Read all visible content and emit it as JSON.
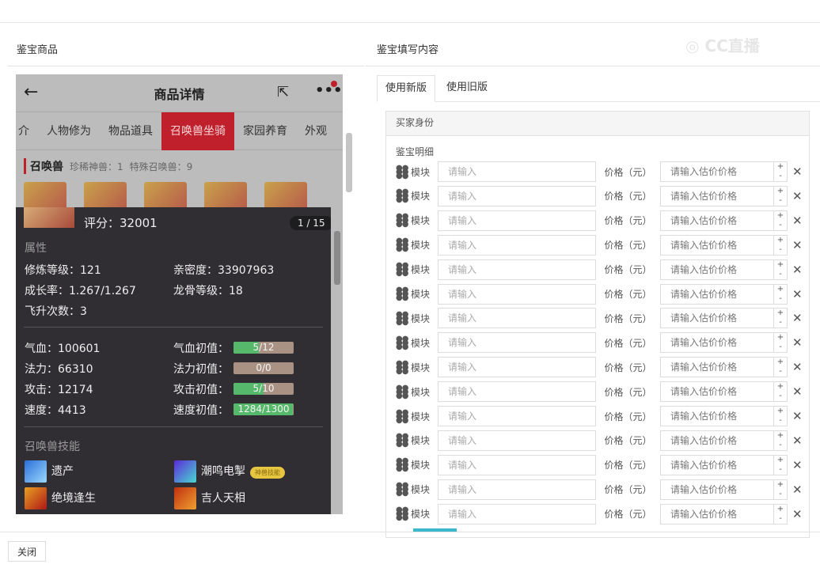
{
  "left": {
    "title": "鉴宝商品"
  },
  "right": {
    "title": "鉴宝填写内容",
    "tabs": [
      "使用新版",
      "使用旧版"
    ],
    "buyer": "买家身份",
    "detail": "鉴宝明细",
    "module_label": "模块",
    "module_placeholder": "请输入",
    "price_label": "价格（元）",
    "price_placeholder": "请输入估价价格",
    "row_count": 15
  },
  "phone": {
    "title": "商品详情",
    "tabs": [
      "介",
      "人物修为",
      "物品道具",
      "召唤兽坐骑",
      "家园养育",
      "外观"
    ],
    "active_tab": "召唤兽坐骑",
    "section": "召唤兽",
    "rare": "珍稀神兽：1",
    "special": "特殊召唤兽：9"
  },
  "pet": {
    "score": "评分：32001",
    "pager": "1 / 15",
    "attr_title": "属性",
    "attrs": [
      "修炼等级：121",
      "亲密度：33907963",
      "成长率：1.267/1.267",
      "龙骨等级：18",
      "飞升次数：3"
    ],
    "stats": [
      {
        "label": "气血：100601",
        "init_label": "气血初值：",
        "init": "5/12",
        "fill": 0.4167
      },
      {
        "label": "法力：66310",
        "init_label": "法力初值：",
        "init": "0/0",
        "fill": 0
      },
      {
        "label": "攻击：12174",
        "init_label": "攻击初值：",
        "init": "5/10",
        "fill": 0.5
      },
      {
        "label": "速度：4413",
        "init_label": "速度初值：",
        "init": "1284/1300",
        "fill": 0.9877
      }
    ],
    "skill_title": "召唤兽技能",
    "skills": [
      "遗产",
      "潮鸣电掣",
      "绝境逢生",
      "吉人天相"
    ],
    "skill_badge": "神兽技能"
  },
  "footer": {
    "close": "关闭"
  },
  "watermark": "CC直播",
  "colors": {
    "accent": "#c0202c",
    "bar_fill": "#56b86a",
    "bar_bg": "#a99283",
    "overlay": "#302e33"
  }
}
